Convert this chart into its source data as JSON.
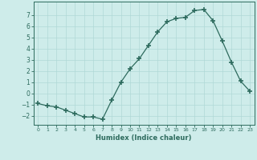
{
  "x": [
    0,
    1,
    2,
    3,
    4,
    5,
    6,
    7,
    8,
    9,
    10,
    11,
    12,
    13,
    14,
    15,
    16,
    17,
    18,
    19,
    20,
    21,
    22,
    23
  ],
  "y": [
    -0.9,
    -1.1,
    -1.2,
    -1.5,
    -1.8,
    -2.1,
    -2.1,
    -2.3,
    -0.6,
    1.0,
    2.2,
    3.1,
    4.3,
    5.5,
    6.4,
    6.7,
    6.8,
    7.4,
    7.5,
    6.5,
    4.7,
    2.8,
    1.1,
    0.2
  ],
  "line_color": "#2e6b5e",
  "marker": "+",
  "marker_size": 4,
  "marker_color": "#2e6b5e",
  "bg_color": "#ceecea",
  "grid_color": "#b0d8d6",
  "tick_color": "#2e6b5e",
  "xlabel": "Humidex (Indice chaleur)",
  "xlim": [
    -0.5,
    23.5
  ],
  "ylim": [
    -2.8,
    8.2
  ],
  "yticks": [
    -2,
    -1,
    0,
    1,
    2,
    3,
    4,
    5,
    6,
    7
  ],
  "xticks": [
    0,
    1,
    2,
    3,
    4,
    5,
    6,
    7,
    8,
    9,
    10,
    11,
    12,
    13,
    14,
    15,
    16,
    17,
    18,
    19,
    20,
    21,
    22,
    23
  ]
}
